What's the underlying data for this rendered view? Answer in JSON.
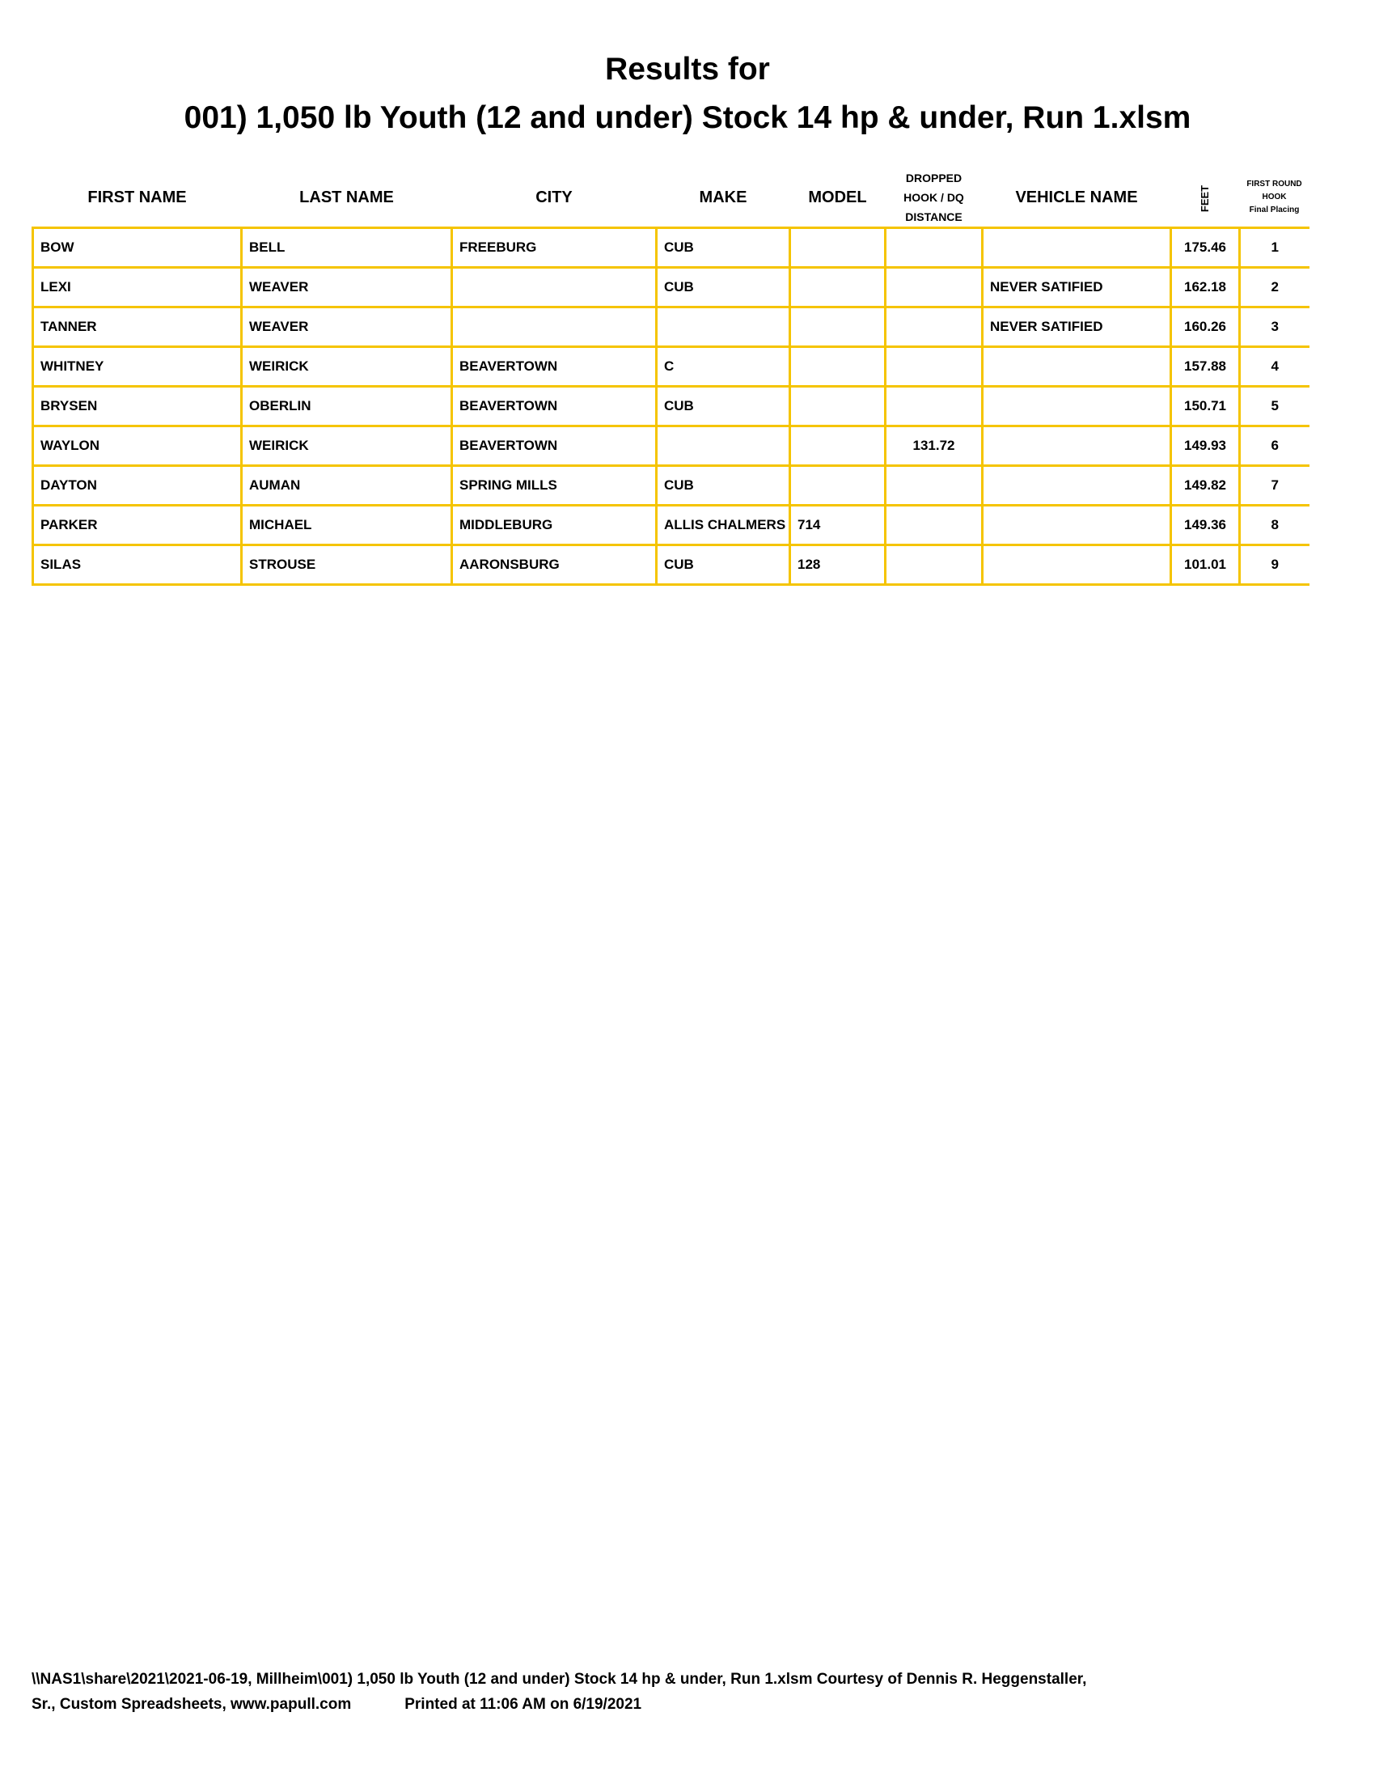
{
  "title": {
    "line1": "Results for",
    "line2": "001) 1,050 lb Youth (12 and under) Stock 14 hp & under, Run 1.xlsm"
  },
  "colors": {
    "grid": "#f5c400"
  },
  "table": {
    "headers": [
      "FIRST NAME",
      "LAST NAME",
      "CITY",
      "MAKE",
      "MODEL",
      "DROPPED HOOK / DQ DISTANCE",
      "VEHICLE NAME",
      "FEET",
      "FIRST ROUND HOOK Final Placing"
    ],
    "header_parts": {
      "dropped": [
        "DROPPED",
        "HOOK / DQ",
        "DISTANCE"
      ],
      "placing": [
        "FIRST ROUND",
        "HOOK",
        "Final Placing"
      ]
    },
    "rows": [
      [
        "BOW",
        "BELL",
        "FREEBURG",
        "CUB",
        "",
        "",
        "",
        "175.46",
        "1"
      ],
      [
        "LEXI",
        "WEAVER",
        "",
        "CUB",
        "",
        "",
        "NEVER SATIFIED",
        "162.18",
        "2"
      ],
      [
        "TANNER",
        "WEAVER",
        "",
        "",
        "",
        "",
        "NEVER SATIFIED",
        "160.26",
        "3"
      ],
      [
        "WHITNEY",
        "WEIRICK",
        "BEAVERTOWN",
        "C",
        "",
        "",
        "",
        "157.88",
        "4"
      ],
      [
        "BRYSEN",
        "OBERLIN",
        "BEAVERTOWN",
        "CUB",
        "",
        "",
        "",
        "150.71",
        "5"
      ],
      [
        "WAYLON",
        "WEIRICK",
        "BEAVERTOWN",
        "",
        "",
        "131.72",
        "",
        "149.93",
        "6"
      ],
      [
        "DAYTON",
        "AUMAN",
        "SPRING MILLS",
        "CUB",
        "",
        "",
        "",
        "149.82",
        "7"
      ],
      [
        "PARKER",
        "MICHAEL",
        "MIDDLEBURG",
        "ALLIS CHALMERS",
        "714",
        "",
        "",
        "149.36",
        "8"
      ],
      [
        "SILAS",
        "STROUSE",
        "AARONSBURG",
        "CUB",
        "128",
        "",
        "",
        "101.01",
        "9"
      ]
    ]
  },
  "footer": {
    "line1": "\\\\NAS1\\share\\2021\\2021-06-19, Millheim\\001) 1,050 lb Youth (12 and under) Stock 14 hp & under, Run 1.xlsm  Courtesy of Dennis R. Heggenstaller,",
    "line2a": "Sr., Custom Spreadsheets, www.papull.com",
    "line2b": "Printed at 11:06 AM on 6/19/2021"
  }
}
